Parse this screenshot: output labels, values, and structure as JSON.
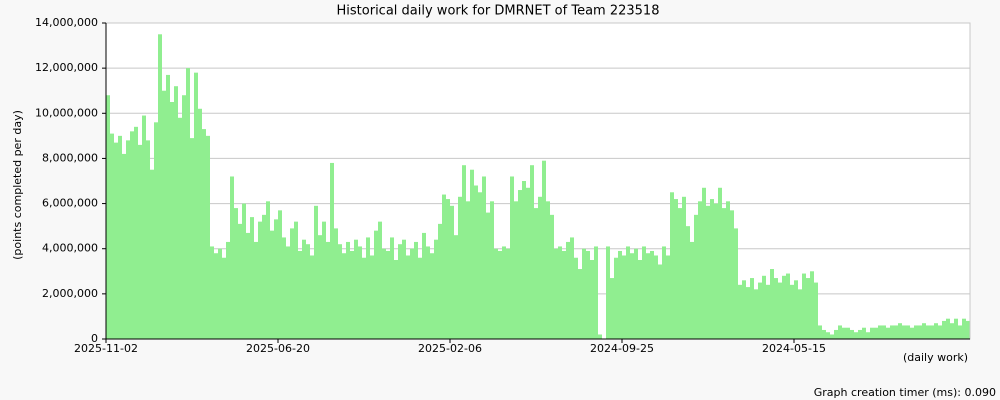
{
  "chart_data": {
    "type": "bar",
    "title": "Historical daily work for DMRNET of Team 223518",
    "y_label": "(points completed per day)",
    "x_label": "(daily work)",
    "color": "#90ee90",
    "grid": true,
    "ylim": [
      0,
      14000000
    ],
    "yticks": [
      0,
      {
        "value": 2000000,
        "label": "2,000,000"
      },
      {
        "value": 4000000,
        "label": "4,000,000"
      },
      {
        "value": 6000000,
        "label": "6,000,000"
      },
      {
        "value": 8000000,
        "label": "8,000,000"
      },
      {
        "value": 10000000,
        "label": "10,000,000"
      },
      {
        "value": 12000000,
        "label": "12,000,000"
      },
      {
        "value": 14000000,
        "label": "14,000,000"
      }
    ],
    "categories": [
      "2025-11-02",
      null,
      null,
      null,
      null,
      null,
      null,
      null,
      null,
      null,
      null,
      null,
      null,
      null,
      null,
      null,
      null,
      null,
      null,
      null,
      null,
      null,
      null,
      null,
      null,
      null,
      null,
      null,
      null,
      null,
      null,
      null,
      null,
      null,
      null,
      null,
      null,
      null,
      null,
      null,
      null,
      null,
      null,
      "2025-06-20",
      null,
      null,
      null,
      null,
      null,
      null,
      null,
      null,
      null,
      null,
      null,
      null,
      null,
      null,
      null,
      null,
      null,
      null,
      null,
      null,
      null,
      null,
      null,
      null,
      null,
      null,
      null,
      null,
      null,
      null,
      null,
      null,
      null,
      null,
      null,
      null,
      null,
      null,
      null,
      null,
      null,
      null,
      "2025-02-06",
      null,
      null,
      null,
      null,
      null,
      null,
      null,
      null,
      null,
      null,
      null,
      null,
      null,
      null,
      null,
      null,
      null,
      null,
      null,
      null,
      null,
      null,
      null,
      null,
      null,
      null,
      null,
      null,
      null,
      null,
      null,
      null,
      null,
      null,
      null,
      null,
      null,
      null,
      null,
      null,
      null,
      null,
      "2024-09-25",
      null,
      null,
      null,
      null,
      null,
      null,
      null,
      null,
      null,
      null,
      null,
      null,
      null,
      null,
      null,
      null,
      null,
      null,
      null,
      null,
      null,
      null,
      null,
      null,
      null,
      null,
      null,
      null,
      null,
      null,
      null,
      null,
      null,
      null,
      null,
      null,
      null,
      null,
      null,
      null,
      null,
      null,
      "2024-05-15",
      null,
      null,
      null,
      null,
      null,
      null,
      null,
      null,
      null,
      null,
      null,
      null,
      null,
      null,
      null,
      null,
      null,
      null,
      null,
      null,
      null,
      null,
      null,
      null,
      null,
      null,
      null,
      null,
      null,
      null,
      null,
      null,
      null,
      null,
      null,
      null,
      null,
      null,
      null,
      null,
      null,
      null,
      null
    ],
    "values": [
      10800000,
      9100000,
      8700000,
      9000000,
      8200000,
      8800000,
      9200000,
      9400000,
      8600000,
      9900000,
      8800000,
      7500000,
      9600000,
      13500000,
      11000000,
      11700000,
      10500000,
      11200000,
      9800000,
      10800000,
      12000000,
      8900000,
      11800000,
      10200000,
      9300000,
      9000000,
      4100000,
      3800000,
      4000000,
      3600000,
      4300000,
      7200000,
      5800000,
      5100000,
      6000000,
      4700000,
      5400000,
      4300000,
      5200000,
      5500000,
      6100000,
      4800000,
      5300000,
      5700000,
      4500000,
      4100000,
      4900000,
      5200000,
      3900000,
      4400000,
      4200000,
      3700000,
      5900000,
      4600000,
      5200000,
      4300000,
      7800000,
      4900000,
      4200000,
      3800000,
      4300000,
      3900000,
      4400000,
      4100000,
      3600000,
      4500000,
      3700000,
      4800000,
      5200000,
      4000000,
      3900000,
      4500000,
      3500000,
      4200000,
      4400000,
      3700000,
      4000000,
      4300000,
      3600000,
      4700000,
      4100000,
      3800000,
      4400000,
      5100000,
      6400000,
      6200000,
      5900000,
      4600000,
      6300000,
      7700000,
      6100000,
      7500000,
      6800000,
      6500000,
      7200000,
      5600000,
      6100000,
      4000000,
      3900000,
      4100000,
      4000000,
      7200000,
      6100000,
      6600000,
      7000000,
      6700000,
      7700000,
      5800000,
      6300000,
      7900000,
      6100000,
      5500000,
      4000000,
      4100000,
      3900000,
      4300000,
      4500000,
      3600000,
      3100000,
      4000000,
      3900000,
      3500000,
      4100000,
      200000,
      0,
      4100000,
      2700000,
      3600000,
      3900000,
      3700000,
      4100000,
      3800000,
      4000000,
      3500000,
      4100000,
      3800000,
      3900000,
      3700000,
      3300000,
      4100000,
      3700000,
      6500000,
      6200000,
      5800000,
      6300000,
      5000000,
      4300000,
      5500000,
      6100000,
      6700000,
      5900000,
      6200000,
      6000000,
      6700000,
      5800000,
      6100000,
      5700000,
      4900000,
      2400000,
      2600000,
      2300000,
      2700000,
      2200000,
      2500000,
      2800000,
      2400000,
      3100000,
      2700000,
      2500000,
      2800000,
      2900000,
      2400000,
      2600000,
      2200000,
      2900000,
      2700000,
      3000000,
      2500000,
      600000,
      400000,
      300000,
      200000,
      400000,
      600000,
      500000,
      500000,
      400000,
      300000,
      400000,
      500000,
      300000,
      500000,
      500000,
      600000,
      600000,
      500000,
      600000,
      600000,
      700000,
      600000,
      600000,
      500000,
      600000,
      600000,
      700000,
      600000,
      600000,
      700000,
      600000,
      800000,
      900000,
      700000,
      900000,
      600000,
      900000,
      800000
    ]
  },
  "footer": "Graph creation timer (ms): 0.090"
}
